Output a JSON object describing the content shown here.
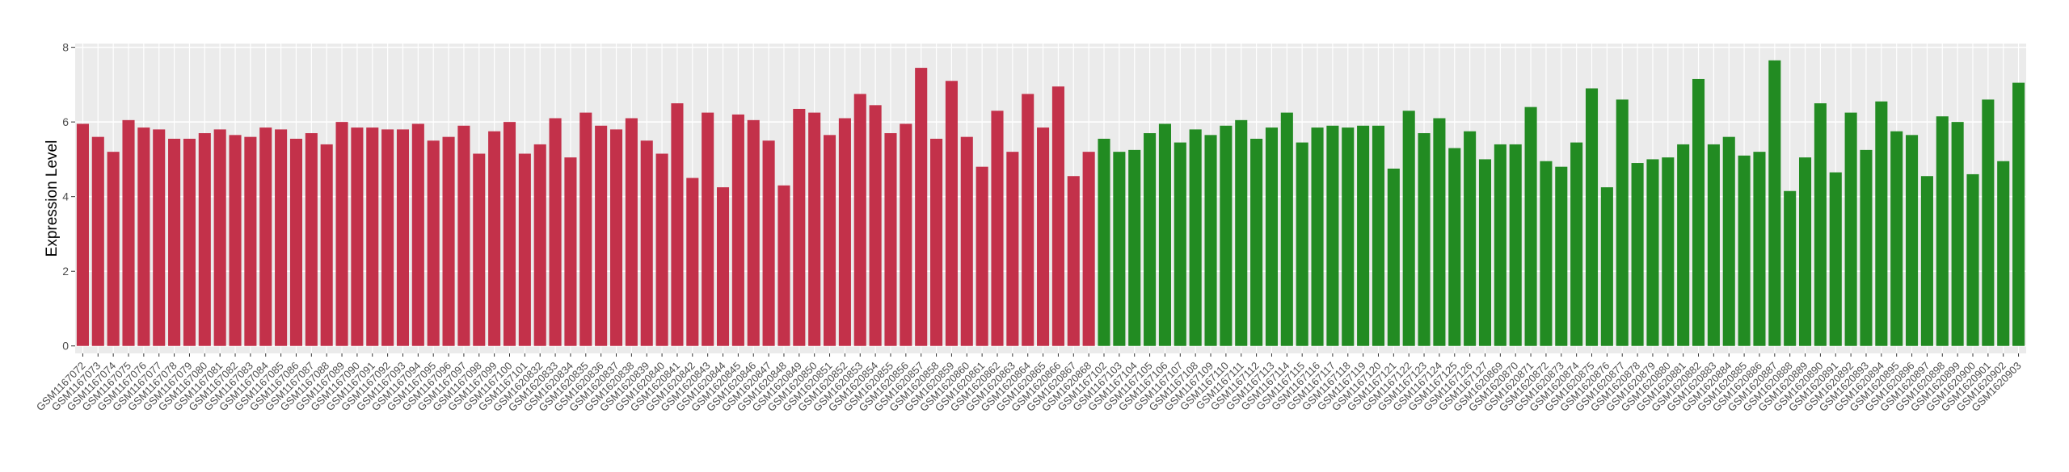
{
  "chart_data": {
    "type": "bar",
    "y_label": "Expression Level",
    "categories": [
      "GSM1167072",
      "GSM1167073",
      "GSM1167074",
      "GSM1167075",
      "GSM1167076",
      "GSM1167077",
      "GSM1167078",
      "GSM1167079",
      "GSM1167080",
      "GSM1167081",
      "GSM1167082",
      "GSM1167083",
      "GSM1167084",
      "GSM1167085",
      "GSM1167086",
      "GSM1167087",
      "GSM1167088",
      "GSM1167089",
      "GSM1167090",
      "GSM1167091",
      "GSM1167092",
      "GSM1167093",
      "GSM1167094",
      "GSM1167095",
      "GSM1167096",
      "GSM1167097",
      "GSM1167098",
      "GSM1167099",
      "GSM1167100",
      "GSM1167101",
      "GSM1620832",
      "GSM1620833",
      "GSM1620834",
      "GSM1620835",
      "GSM1620836",
      "GSM1620837",
      "GSM1620838",
      "GSM1620839",
      "GSM1620840",
      "GSM1620841",
      "GSM1620842",
      "GSM1620843",
      "GSM1620844",
      "GSM1620845",
      "GSM1620846",
      "GSM1620847",
      "GSM1620848",
      "GSM1620849",
      "GSM1620850",
      "GSM1620851",
      "GSM1620852",
      "GSM1620853",
      "GSM1620854",
      "GSM1620855",
      "GSM1620856",
      "GSM1620857",
      "GSM1620858",
      "GSM1620859",
      "GSM1620860",
      "GSM1620861",
      "GSM1620862",
      "GSM1620863",
      "GSM1620864",
      "GSM1620865",
      "GSM1620866",
      "GSM1620867",
      "GSM1620868",
      "GSM1167102",
      "GSM1167103",
      "GSM1167104",
      "GSM1167105",
      "GSM1167106",
      "GSM1167107",
      "GSM1167108",
      "GSM1167109",
      "GSM1167110",
      "GSM1167111",
      "GSM1167112",
      "GSM1167113",
      "GSM1167114",
      "GSM1167115",
      "GSM1167116",
      "GSM1167117",
      "GSM1167118",
      "GSM1167119",
      "GSM1167120",
      "GSM1167121",
      "GSM1167122",
      "GSM1167123",
      "GSM1167124",
      "GSM1167125",
      "GSM1167126",
      "GSM1167127",
      "GSM1620869",
      "GSM1620870",
      "GSM1620871",
      "GSM1620872",
      "GSM1620873",
      "GSM1620874",
      "GSM1620875",
      "GSM1620876",
      "GSM1620877",
      "GSM1620878",
      "GSM1620879",
      "GSM1620880",
      "GSM1620881",
      "GSM1620882",
      "GSM1620883",
      "GSM1620884",
      "GSM1620885",
      "GSM1620886",
      "GSM1620887",
      "GSM1620888",
      "GSM1620889",
      "GSM1620890",
      "GSM1620891",
      "GSM1620892",
      "GSM1620893",
      "GSM1620894",
      "GSM1620895",
      "GSM1620896",
      "GSM1620897",
      "GSM1620898",
      "GSM1620899",
      "GSM1620900",
      "GSM1620901",
      "GSM1620902",
      "GSM1620903"
    ],
    "series": [
      {
        "color": "#c3314a",
        "values": [
          5.95,
          5.6,
          5.2,
          6.05,
          5.85,
          5.8,
          5.55,
          5.55,
          5.7,
          5.8,
          5.65,
          5.6,
          5.85,
          5.8,
          5.55,
          5.7,
          5.4,
          6.0,
          5.85,
          5.85,
          5.8,
          5.8,
          5.95,
          5.5,
          5.6,
          5.9,
          5.15,
          5.75,
          6.0,
          5.15,
          5.4,
          6.1,
          5.05,
          6.25,
          5.9,
          5.8,
          6.1,
          5.5,
          5.15,
          6.5,
          4.5,
          6.25,
          4.25,
          6.2,
          6.05,
          5.5,
          4.3,
          6.35,
          6.25,
          5.65,
          6.1,
          6.75,
          6.45,
          5.7,
          5.95,
          7.45,
          5.55,
          7.1,
          5.6,
          4.8,
          6.3,
          5.2,
          6.75,
          5.85,
          6.95,
          4.55,
          5.2,
          null,
          null,
          null,
          null,
          null,
          null,
          null,
          null,
          null,
          null,
          null,
          null,
          null,
          null,
          null,
          null,
          null,
          null,
          null,
          null,
          null,
          null,
          null,
          null,
          null,
          null,
          null,
          null,
          null,
          null,
          null,
          null,
          null,
          null,
          null,
          null,
          null,
          null,
          null,
          null,
          null,
          null,
          null,
          null,
          null,
          null,
          null,
          null,
          null,
          null,
          null,
          null,
          null,
          null,
          null,
          null,
          null,
          null,
          null,
          null,
          null
        ]
      },
      {
        "color": "#228b22",
        "values": [
          null,
          null,
          null,
          null,
          null,
          null,
          null,
          null,
          null,
          null,
          null,
          null,
          null,
          null,
          null,
          null,
          null,
          null,
          null,
          null,
          null,
          null,
          null,
          null,
          null,
          null,
          null,
          null,
          null,
          null,
          null,
          null,
          null,
          null,
          null,
          null,
          null,
          null,
          null,
          null,
          null,
          null,
          null,
          null,
          null,
          null,
          null,
          null,
          null,
          null,
          null,
          null,
          null,
          null,
          null,
          null,
          null,
          null,
          null,
          null,
          null,
          null,
          null,
          null,
          null,
          null,
          null,
          5.55,
          5.2,
          5.25,
          5.7,
          5.95,
          5.45,
          5.8,
          5.65,
          5.9,
          6.05,
          5.55,
          5.85,
          6.25,
          5.45,
          5.85,
          5.9,
          5.85,
          5.9,
          5.9,
          4.75,
          6.3,
          5.7,
          6.1,
          5.3,
          5.75,
          5.0,
          5.4,
          5.4,
          6.4,
          4.95,
          4.8,
          5.45,
          6.9,
          4.25,
          6.6,
          4.9,
          5.0,
          5.05,
          5.4,
          7.15,
          5.4,
          5.6,
          5.1,
          5.2,
          7.65,
          4.15,
          5.05,
          6.5,
          4.65,
          6.25,
          5.25,
          6.55,
          5.75,
          5.65,
          4.55,
          6.15,
          6.0,
          4.6,
          6.6,
          4.95,
          7.05
        ]
      }
    ],
    "ylim": [
      -0.2,
      8.1
    ],
    "yticks": [
      0,
      2,
      4,
      6,
      8
    ],
    "grid": true
  }
}
